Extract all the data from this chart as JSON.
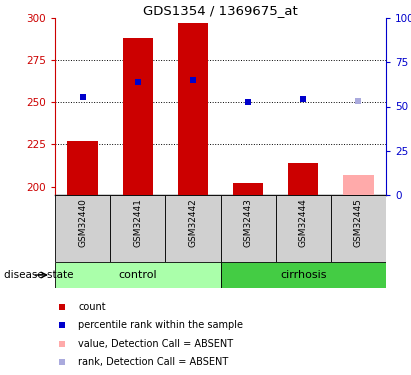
{
  "title": "GDS1354 / 1369675_at",
  "samples": [
    "GSM32440",
    "GSM32441",
    "GSM32442",
    "GSM32443",
    "GSM32444",
    "GSM32445"
  ],
  "groups": [
    "control",
    "control",
    "control",
    "cirrhosis",
    "cirrhosis",
    "cirrhosis"
  ],
  "ylim_left": [
    195,
    300
  ],
  "ylim_right": [
    0,
    100
  ],
  "yticks_left": [
    200,
    225,
    250,
    275,
    300
  ],
  "yticks_right": [
    0,
    25,
    50,
    75,
    100
  ],
  "bar_values": [
    227,
    288,
    297,
    202,
    214,
    null
  ],
  "bar_absent_value": 207,
  "bar_absent_color": "#ffaaaa",
  "bar_color": "#cc0000",
  "dot_values": [
    253,
    262,
    263,
    250,
    252,
    251
  ],
  "dot_colors": [
    "#0000cc",
    "#0000cc",
    "#0000cc",
    "#0000cc",
    "#0000cc",
    "#aaaadd"
  ],
  "dot_size": 18,
  "control_color": "#aaffaa",
  "cirrhosis_color": "#44cc44",
  "sample_box_color": "#d0d0d0",
  "left_axis_color": "#cc0000",
  "right_axis_color": "#0000cc",
  "disease_state_label": "disease state",
  "legend_items": [
    {
      "color": "#cc0000",
      "label": "count"
    },
    {
      "color": "#0000cc",
      "label": "percentile rank within the sample"
    },
    {
      "color": "#ffaaaa",
      "label": "value, Detection Call = ABSENT"
    },
    {
      "color": "#aaaadd",
      "label": "rank, Detection Call = ABSENT"
    }
  ]
}
